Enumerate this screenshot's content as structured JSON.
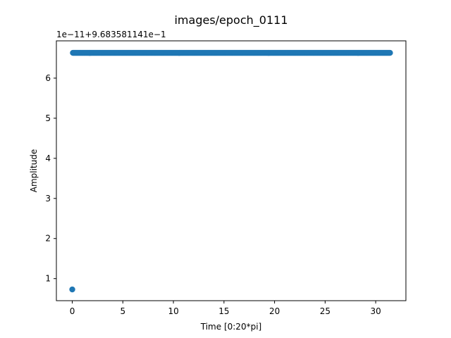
{
  "chart_data": {
    "type": "scatter",
    "title": "images/epoch_0111",
    "xlabel": "Time [0:20*pi]",
    "ylabel": "Amplitude",
    "y_offset_text": "1e−11+9.683581141e−1",
    "xlim": [
      -1.5713,
      32.9867
    ],
    "ylim": [
      0.45,
      6.93
    ],
    "x_ticks": [
      0,
      5,
      10,
      15,
      20,
      25,
      30
    ],
    "y_ticks": [
      1,
      2,
      3,
      4,
      5,
      6
    ],
    "grid": false,
    "color": "#1f77b4",
    "series": [
      {
        "x_start": 0,
        "x_end": 31.4159,
        "n_points": 500,
        "first_value": 0.73,
        "other_values": 6.63
      }
    ]
  }
}
